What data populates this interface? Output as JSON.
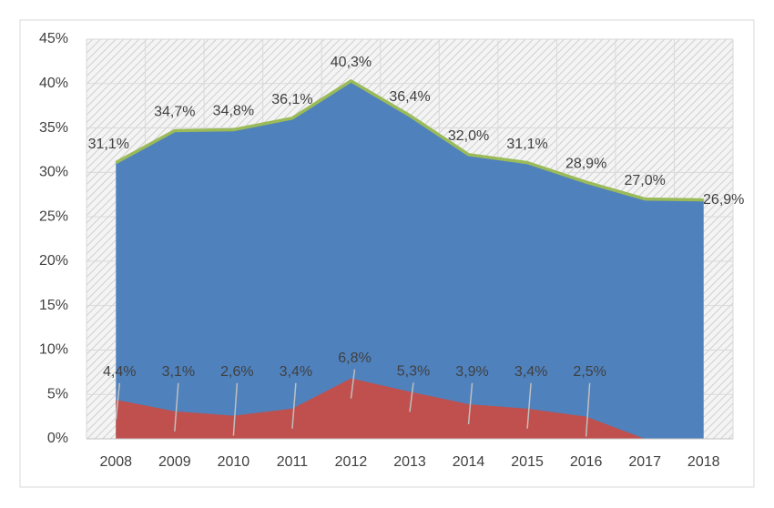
{
  "chart_data": {
    "type": "area",
    "categories": [
      "2008",
      "2009",
      "2010",
      "2011",
      "2012",
      "2013",
      "2014",
      "2015",
      "2016",
      "2017",
      "2018"
    ],
    "series": [
      {
        "color": "#4f81bd",
        "line_color": "#9bbb59",
        "values": [
          31.1,
          34.7,
          34.8,
          36.1,
          40.3,
          36.4,
          32.0,
          31.1,
          28.9,
          27.0,
          26.9
        ],
        "value_labels": [
          "31,1%",
          "34,7%",
          "34,8%",
          "36,1%",
          "40,3%",
          "36,4%",
          "32,0%",
          "31,1%",
          "28,9%",
          "27,0%",
          "26,9%"
        ]
      },
      {
        "color": "#c0504d",
        "values": [
          4.4,
          3.1,
          2.6,
          3.4,
          6.8,
          5.3,
          3.9,
          3.4,
          2.5,
          0,
          0
        ],
        "value_labels": [
          "4,4%",
          "3,1%",
          "2,6%",
          "3,4%",
          "6,8%",
          "5,3%",
          "3,9%",
          "3,4%",
          "2,5%",
          null,
          null
        ]
      }
    ],
    "ylim": [
      0,
      45
    ],
    "yticks": [
      {
        "value": 0,
        "label": "0%"
      },
      {
        "value": 5,
        "label": "5%"
      },
      {
        "value": 10,
        "label": "10%"
      },
      {
        "value": 15,
        "label": "15%"
      },
      {
        "value": 20,
        "label": "20%"
      },
      {
        "value": 25,
        "label": "25%"
      },
      {
        "value": 30,
        "label": "30%"
      },
      {
        "value": 35,
        "label": "35%"
      },
      {
        "value": 40,
        "label": "40%"
      },
      {
        "value": 45,
        "label": "45%"
      }
    ],
    "grid": true
  }
}
